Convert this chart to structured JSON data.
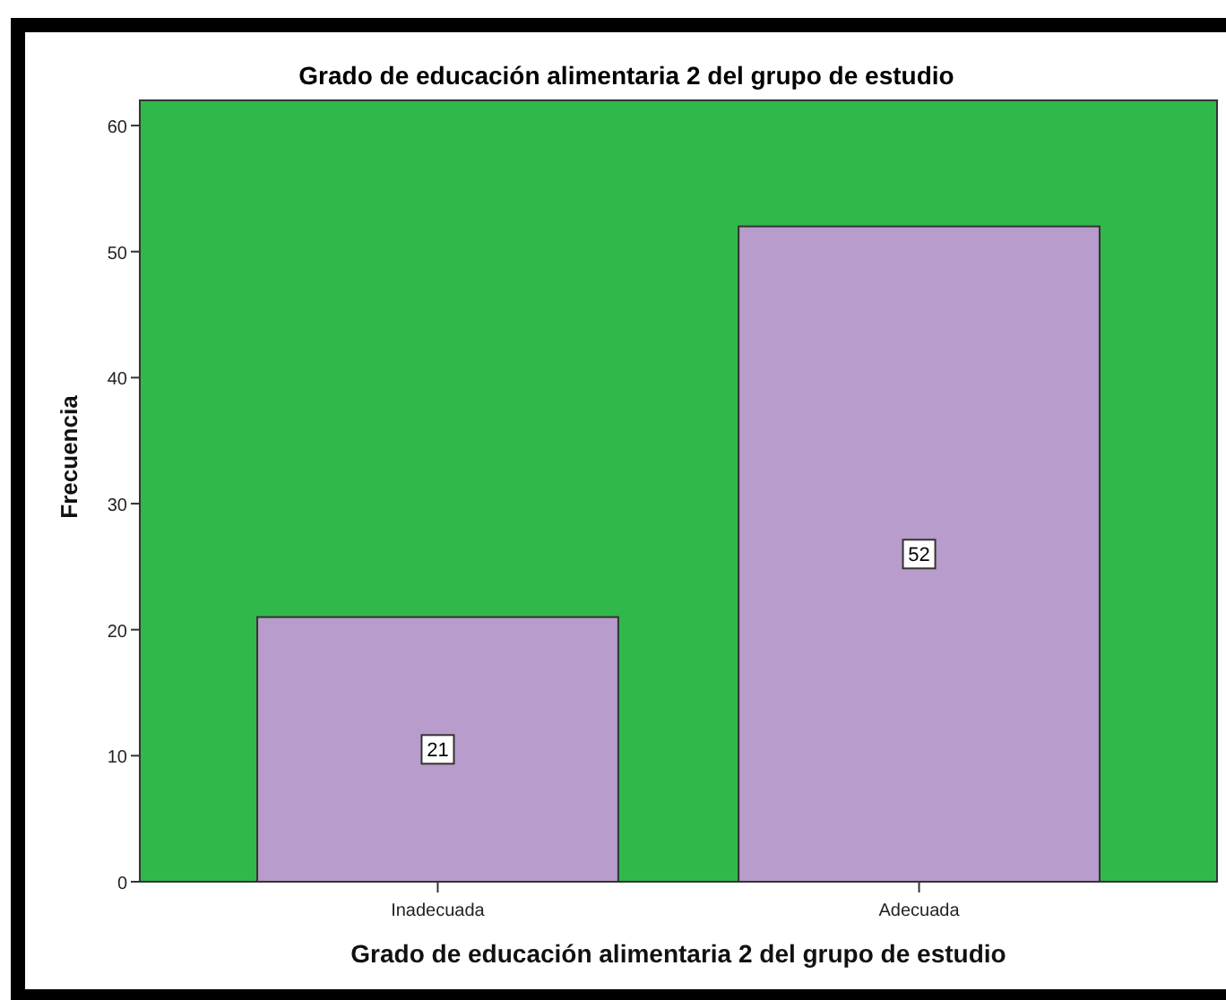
{
  "chart_data": {
    "type": "bar",
    "title": "Grado de educación alimentaria 2 del grupo de estudio",
    "xlabel": "Grado de educación alimentaria 2 del grupo de estudio",
    "ylabel": "Frecuencia",
    "categories": [
      "Inadecuada",
      "Adecuada"
    ],
    "values": [
      21,
      52
    ],
    "color": "#b89ccb",
    "ylim": [
      0,
      62
    ],
    "yticks": [
      0,
      10,
      20,
      30,
      40,
      50,
      60
    ],
    "data_labels": true
  }
}
